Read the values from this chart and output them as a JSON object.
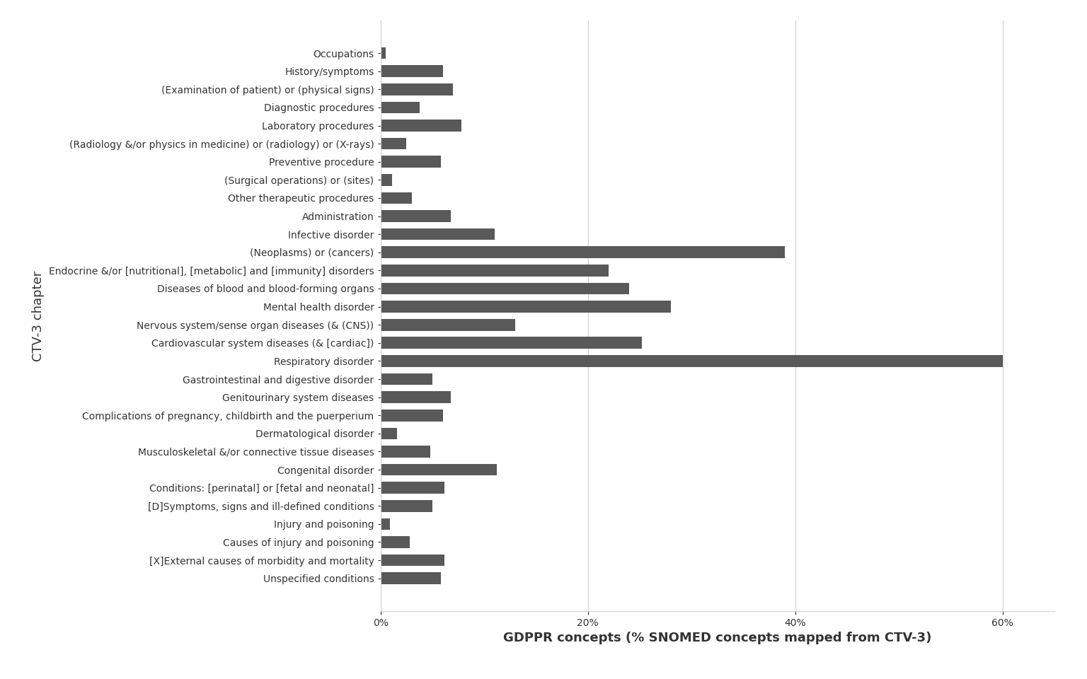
{
  "categories": [
    "Occupations",
    "History/symptoms",
    "(Examination of patient) or (physical signs)",
    "Diagnostic procedures",
    "Laboratory procedures",
    "(Radiology &/or physics in medicine) or (radiology) or (X-rays)",
    "Preventive procedure",
    "(Surgical operations) or (sites)",
    "Other therapeutic procedures",
    "Administration",
    "Infective disorder",
    "(Neoplasms) or (cancers)",
    "Endocrine &/or [nutritional], [metabolic] and [immunity] disorders",
    "Diseases of blood and blood-forming organs",
    "Mental health disorder",
    "Nervous system/sense organ diseases (& (CNS))",
    "Cardiovascular system diseases (& [cardiac])",
    "Respiratory disorder",
    "Gastrointestinal and digestive disorder",
    "Genitourinary system diseases",
    "Complications of pregnancy, childbirth and the puerperium",
    "Dermatological disorder",
    "Musculoskeletal &/or connective tissue diseases",
    "Congenital disorder",
    "Conditions: [perinatal] or [fetal and neonatal]",
    "[D]Symptoms, signs and ill-defined conditions",
    "Injury and poisoning",
    "Causes of injury and poisoning",
    "[X]External causes of morbidity and mortality",
    "Unspecified conditions"
  ],
  "values": [
    0.5,
    6.0,
    7.0,
    3.8,
    7.8,
    2.5,
    5.8,
    1.1,
    3.0,
    6.8,
    11.0,
    39.0,
    22.0,
    24.0,
    28.0,
    13.0,
    25.2,
    60.0,
    5.0,
    6.8,
    6.0,
    1.6,
    4.8,
    11.2,
    6.2,
    5.0,
    0.9,
    2.8,
    6.2,
    5.8
  ],
  "bar_color": "#595959",
  "xlabel": "GDPPR concepts (% SNOMED concepts mapped from CTV-3)",
  "ylabel": "CTV-3 chapter",
  "xlim": [
    0,
    65
  ],
  "background_color": "#ffffff",
  "label_color": "#2e4057",
  "tick_color": "#333333",
  "grid_color": "#d0d0d0",
  "xlabel_fontsize": 13,
  "ylabel_fontsize": 13,
  "tick_fontsize": 10,
  "bar_height": 0.65
}
